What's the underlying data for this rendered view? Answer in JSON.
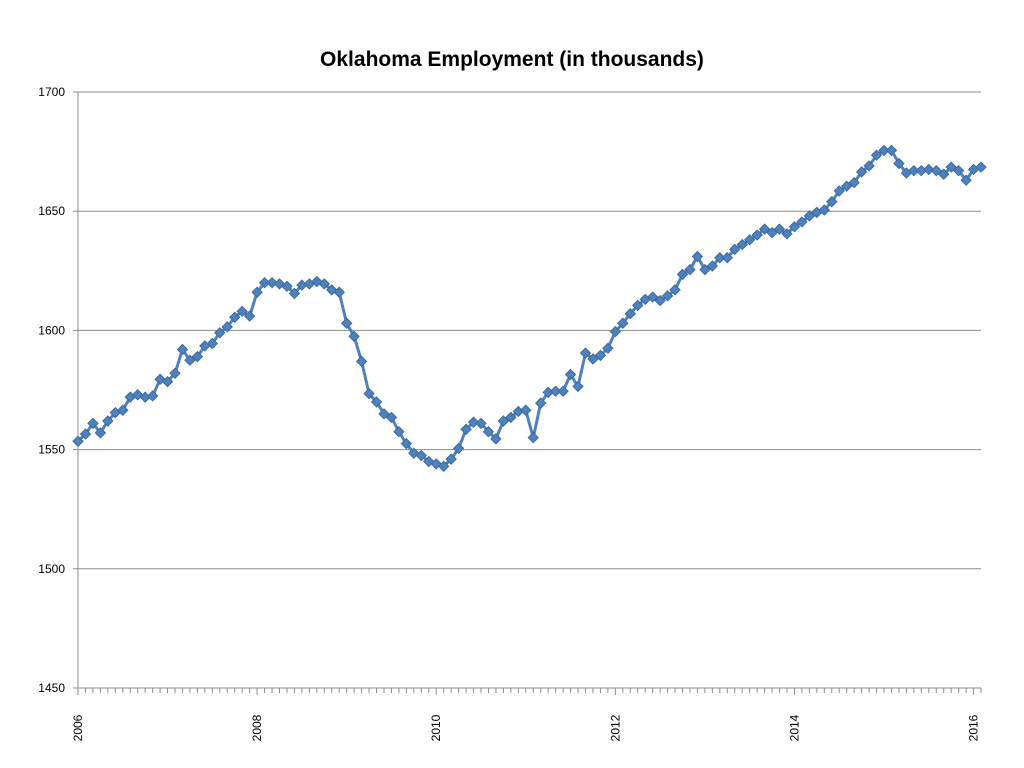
{
  "chart_data": {
    "type": "line",
    "title": "Oklahoma Employment (in thousands)",
    "xlabel": "",
    "ylabel": "",
    "ylim": [
      1450,
      1700
    ],
    "yticks": [
      1450,
      1500,
      1550,
      1600,
      1650,
      1700
    ],
    "xlim": [
      2006,
      2016.083
    ],
    "xticks": [
      "2006",
      "2008",
      "2010",
      "2012",
      "2014",
      "2016"
    ],
    "grid": "horizontal",
    "legend": "none",
    "series": [
      {
        "color": "#4f81bd",
        "marker": "diamond",
        "x": [
          "2006-01",
          "2006-02",
          "2006-03",
          "2006-04",
          "2006-05",
          "2006-06",
          "2006-07",
          "2006-08",
          "2006-09",
          "2006-10",
          "2006-11",
          "2006-12",
          "2007-01",
          "2007-02",
          "2007-03",
          "2007-04",
          "2007-05",
          "2007-06",
          "2007-07",
          "2007-08",
          "2007-09",
          "2007-10",
          "2007-11",
          "2007-12",
          "2008-01",
          "2008-02",
          "2008-03",
          "2008-04",
          "2008-05",
          "2008-06",
          "2008-07",
          "2008-08",
          "2008-09",
          "2008-10",
          "2008-11",
          "2008-12",
          "2009-01",
          "2009-02",
          "2009-03",
          "2009-04",
          "2009-05",
          "2009-06",
          "2009-07",
          "2009-08",
          "2009-09",
          "2009-10",
          "2009-11",
          "2009-12",
          "2010-01",
          "2010-02",
          "2010-03",
          "2010-04",
          "2010-05",
          "2010-06",
          "2010-07",
          "2010-08",
          "2010-09",
          "2010-10",
          "2010-11",
          "2010-12",
          "2011-01",
          "2011-02",
          "2011-03",
          "2011-04",
          "2011-05",
          "2011-06",
          "2011-07",
          "2011-08",
          "2011-09",
          "2011-10",
          "2011-11",
          "2011-12",
          "2012-01",
          "2012-02",
          "2012-03",
          "2012-04",
          "2012-05",
          "2012-06",
          "2012-07",
          "2012-08",
          "2012-09",
          "2012-10",
          "2012-11",
          "2012-12",
          "2013-01",
          "2013-02",
          "2013-03",
          "2013-04",
          "2013-05",
          "2013-06",
          "2013-07",
          "2013-08",
          "2013-09",
          "2013-10",
          "2013-11",
          "2013-12",
          "2014-01",
          "2014-02",
          "2014-03",
          "2014-04",
          "2014-05",
          "2014-06",
          "2014-07",
          "2014-08",
          "2014-09",
          "2014-10",
          "2014-11",
          "2014-12",
          "2015-01",
          "2015-02",
          "2015-03",
          "2015-04",
          "2015-05",
          "2015-06",
          "2015-07",
          "2015-08",
          "2015-09",
          "2015-10",
          "2015-11",
          "2015-12",
          "2016-01",
          "2016-02"
        ],
        "values": [
          1553.5,
          1556.5,
          1561,
          1557,
          1562,
          1565.5,
          1566.5,
          1572,
          1573,
          1572,
          1572.5,
          1579.5,
          1578.5,
          1582,
          1592,
          1587.5,
          1589,
          1593.5,
          1594.5,
          1599,
          1601.5,
          1605.5,
          1608,
          1606,
          1616,
          1620,
          1620,
          1619.5,
          1618.5,
          1615.5,
          1619,
          1619.5,
          1620.5,
          1619.5,
          1617,
          1616,
          1603,
          1597.5,
          1587,
          1573.5,
          1570,
          1565,
          1563.5,
          1557.5,
          1552.5,
          1548.5,
          1547.5,
          1545,
          1544,
          1543,
          1546,
          1550.5,
          1558.5,
          1561.5,
          1561,
          1557.5,
          1554.5,
          1562,
          1563.5,
          1566,
          1566.5,
          1555,
          1569.5,
          1574,
          1574.5,
          1574.5,
          1581.5,
          1576.5,
          1590.5,
          1588,
          1589.5,
          1592.5,
          1599.5,
          1603,
          1607,
          1610.5,
          1613,
          1614,
          1612.5,
          1614.5,
          1617,
          1623.5,
          1625.5,
          1631,
          1625.5,
          1627,
          1630.5,
          1630.5,
          1634,
          1636,
          1638,
          1640,
          1642.5,
          1641,
          1642.5,
          1640.5,
          1643.5,
          1645.5,
          1648,
          1649.5,
          1650.5,
          1654,
          1658.5,
          1660.5,
          1662,
          1666.5,
          1669,
          1673.5,
          1675.5,
          1675.5,
          1670,
          1666,
          1667,
          1667,
          1667.5,
          1667,
          1665.5,
          1668.5,
          1667,
          1663,
          1667.5,
          1668.5
        ]
      }
    ]
  }
}
